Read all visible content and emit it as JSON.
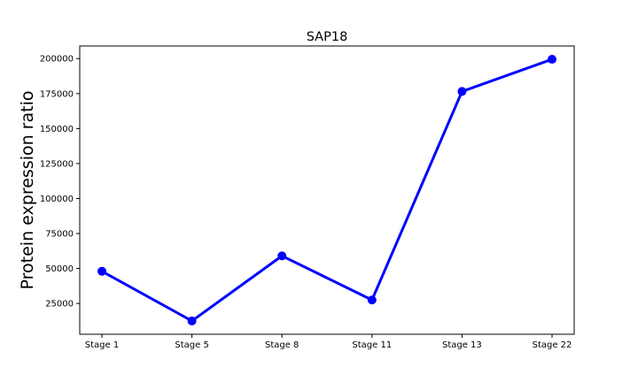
{
  "chart_data": {
    "type": "line",
    "title": "SAP18",
    "xlabel": "",
    "ylabel": "Protein expression ratio",
    "categories": [
      "Stage 1",
      "Stage 5",
      "Stage 8",
      "Stage 11",
      "Stage 13",
      "Stage 22"
    ],
    "series": [
      {
        "name": "SAP18",
        "values": [
          48000,
          12500,
          59000,
          27500,
          176500,
          199500
        ]
      }
    ],
    "y_ticks": [
      25000,
      50000,
      75000,
      100000,
      125000,
      150000,
      175000,
      200000
    ],
    "y_tick_labels": [
      "25000",
      "50000",
      "75000",
      "100000",
      "125000",
      "150000",
      "175000",
      "200000"
    ],
    "ylim": [
      3000,
      209000
    ],
    "grid": false,
    "line_color": "#0000ff"
  }
}
